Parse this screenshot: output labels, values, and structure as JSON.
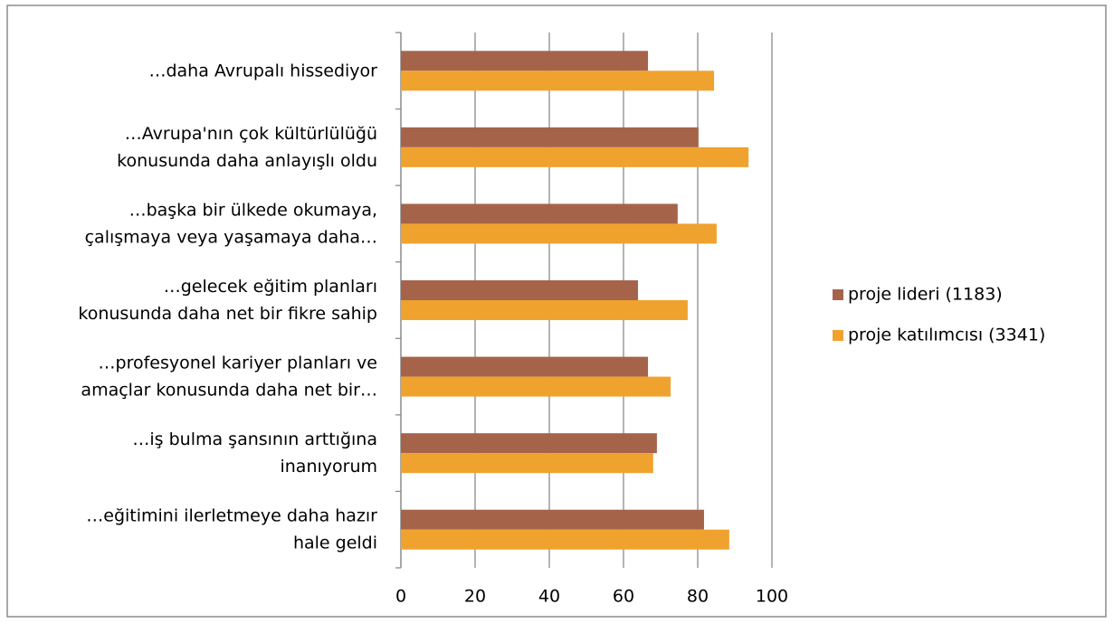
{
  "chart_data": {
    "type": "hbar",
    "categories": [
      "…daha Avrupalı hissediyor",
      "…Avrupa'nın çok kültürlülüğü\nkonusunda daha anlayışlı oldu",
      "…başka bir ülkede okumaya,\nçalışmaya veya yaşamaya daha…",
      "…gelecek eğitim planları\nkonusunda daha net bir fikre sahip",
      "…profesyonel kariyer planları ve\namaçlar konusunda daha net bir…",
      "…iş bulma şansının arttığına\ninanıyorum",
      "…eğitimini ilerletmeye daha hazır\nhale geldi"
    ],
    "series": [
      {
        "name": "proje lideri (1183)",
        "color": "#a5644a",
        "values": [
          66.6,
          80.2,
          74.6,
          63.9,
          66.6,
          69,
          81.7
        ]
      },
      {
        "name": "proje katılımcısı (3341)",
        "color": "#f0a22e",
        "values": [
          84.4,
          93.7,
          85.1,
          77.3,
          72.7,
          68,
          88.5
        ]
      }
    ],
    "xlim": [
      0,
      100
    ],
    "xticks": [
      0,
      20,
      40,
      60,
      80,
      100
    ],
    "grid": true,
    "legend": "right"
  }
}
